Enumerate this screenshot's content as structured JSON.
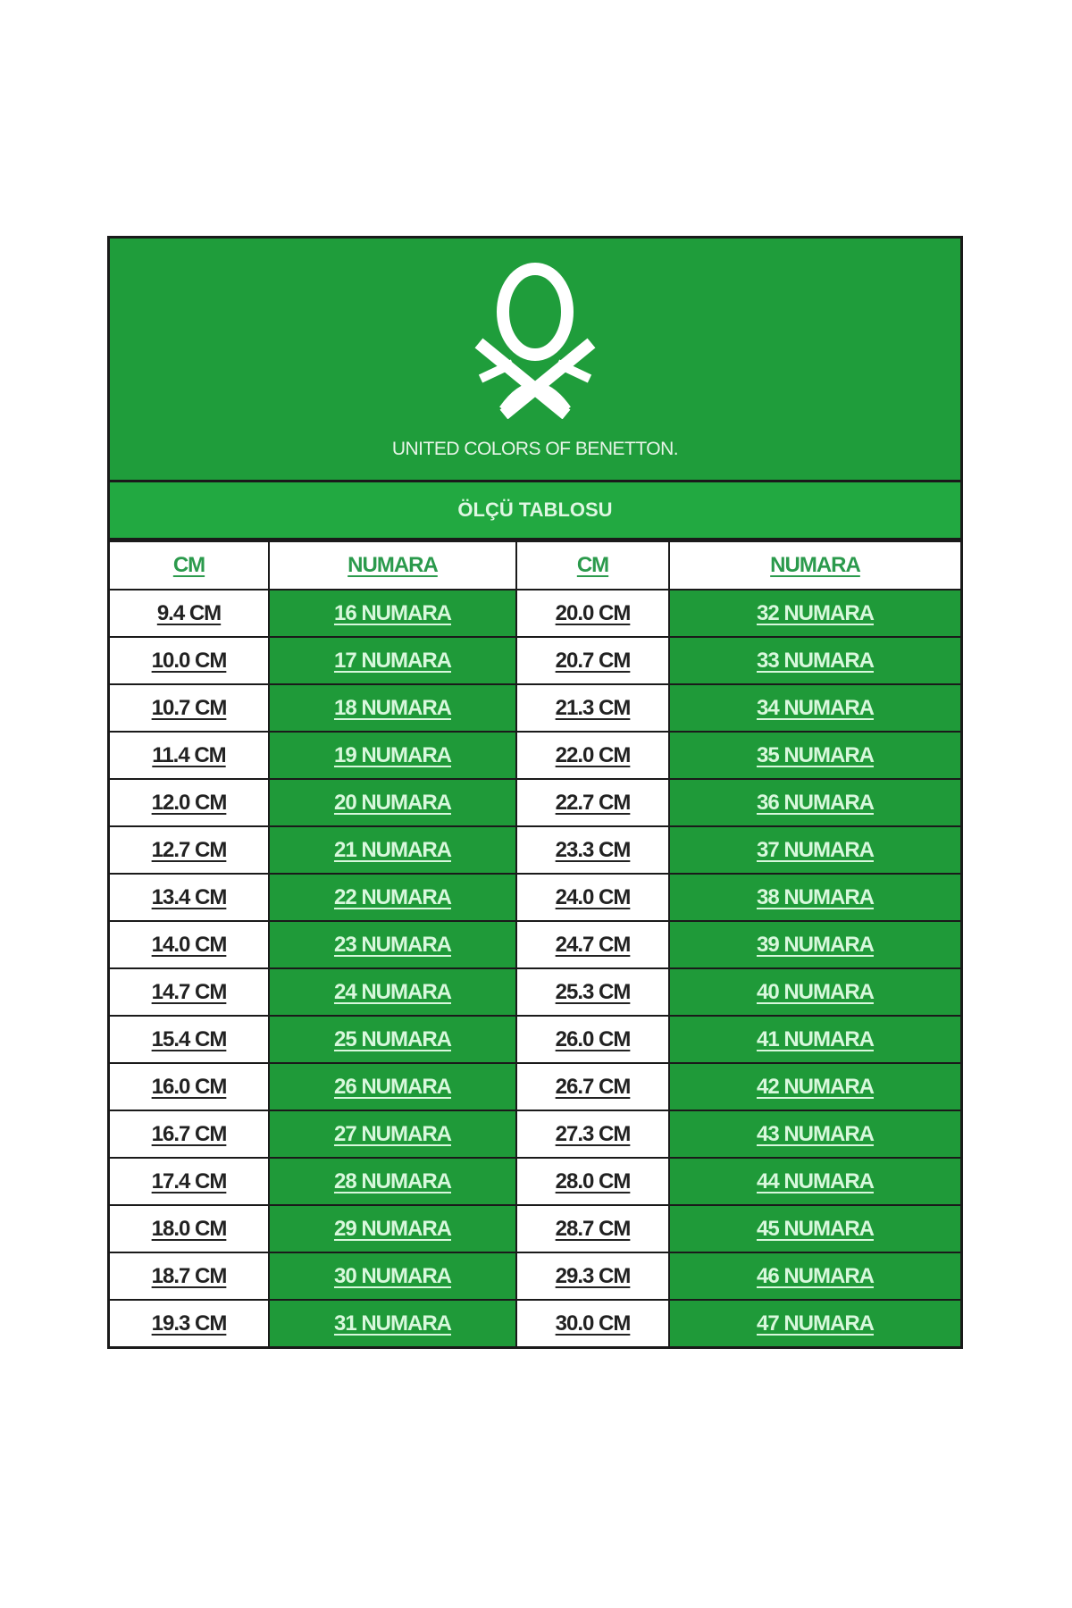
{
  "brand": {
    "name": "UNITED COLORS OF BENETTON.",
    "logo_icon": "benetton-knot-logo"
  },
  "title": "ÖLÇÜ TABLOSU",
  "colors": {
    "green": "#1f9d3b",
    "header_text": "#2b9a4c",
    "border": "#1a1a1a"
  },
  "headers": [
    "CM",
    "NUMARA",
    "CM",
    "NUMARA"
  ],
  "rows": [
    [
      "9.4 CM",
      "16 NUMARA",
      "20.0 CM",
      "32 NUMARA"
    ],
    [
      "10.0 CM",
      "17 NUMARA",
      "20.7 CM",
      "33 NUMARA"
    ],
    [
      "10.7 CM",
      "18 NUMARA",
      "21.3 CM",
      "34 NUMARA"
    ],
    [
      "11.4 CM",
      "19 NUMARA",
      "22.0 CM",
      "35 NUMARA"
    ],
    [
      "12.0 CM",
      "20 NUMARA",
      "22.7 CM",
      "36 NUMARA"
    ],
    [
      "12.7 CM",
      "21 NUMARA",
      "23.3 CM",
      "37 NUMARA"
    ],
    [
      "13.4 CM",
      "22 NUMARA",
      "24.0 CM",
      "38 NUMARA"
    ],
    [
      "14.0 CM",
      "23 NUMARA",
      "24.7 CM",
      "39 NUMARA"
    ],
    [
      "14.7 CM",
      "24 NUMARA",
      "25.3 CM",
      "40 NUMARA"
    ],
    [
      "15.4 CM",
      "25 NUMARA",
      "26.0 CM",
      "41 NUMARA"
    ],
    [
      "16.0 CM",
      "26 NUMARA",
      "26.7 CM",
      "42 NUMARA"
    ],
    [
      "16.7 CM",
      "27 NUMARA",
      "27.3 CM",
      "43 NUMARA"
    ],
    [
      "17.4 CM",
      "28 NUMARA",
      "28.0 CM",
      "44 NUMARA"
    ],
    [
      "18.0 CM",
      "29 NUMARA",
      "28.7 CM",
      "45 NUMARA"
    ],
    [
      "18.7 CM",
      "30 NUMARA",
      "29.3 CM",
      "46 NUMARA"
    ],
    [
      "19.3 CM",
      "31 NUMARA",
      "30.0 CM",
      "47 NUMARA"
    ]
  ]
}
